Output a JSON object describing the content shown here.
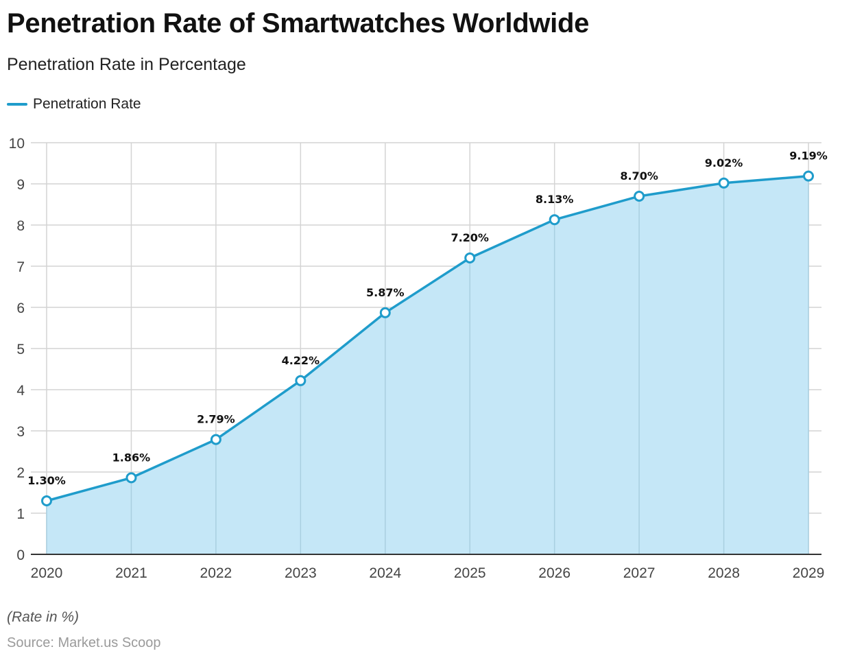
{
  "header": {
    "title": "Penetration Rate of Smartwatches Worldwide",
    "subtitle": "Penetration Rate in Percentage"
  },
  "footer": {
    "note": "(Rate in %)",
    "source": "Source: Market.us Scoop"
  },
  "colors": {
    "line": "#1f9ccb",
    "area": "#c5e7f7",
    "grid": "#d4d4d4",
    "axis": "#333333"
  },
  "chart_data": {
    "type": "area",
    "title": "Penetration Rate of Smartwatches Worldwide",
    "subtitle": "Penetration Rate in Percentage",
    "xlabel": "",
    "ylabel": "",
    "categories": [
      "2020",
      "2021",
      "2022",
      "2023",
      "2024",
      "2025",
      "2026",
      "2027",
      "2028",
      "2029"
    ],
    "series": [
      {
        "name": "Penetration Rate",
        "values": [
          1.3,
          1.86,
          2.79,
          4.22,
          5.87,
          7.2,
          8.13,
          8.7,
          9.02,
          9.19
        ],
        "labels": [
          "1.30%",
          "1.86%",
          "2.79%",
          "4.22%",
          "5.87%",
          "7.20%",
          "8.13%",
          "8.70%",
          "9.02%",
          "9.19%"
        ]
      }
    ],
    "ylim": [
      0,
      10
    ],
    "yticks": [
      "0",
      "1",
      "2",
      "3",
      "4",
      "5",
      "6",
      "7",
      "8",
      "9",
      "10"
    ],
    "grid": true,
    "legend": "top-left"
  }
}
